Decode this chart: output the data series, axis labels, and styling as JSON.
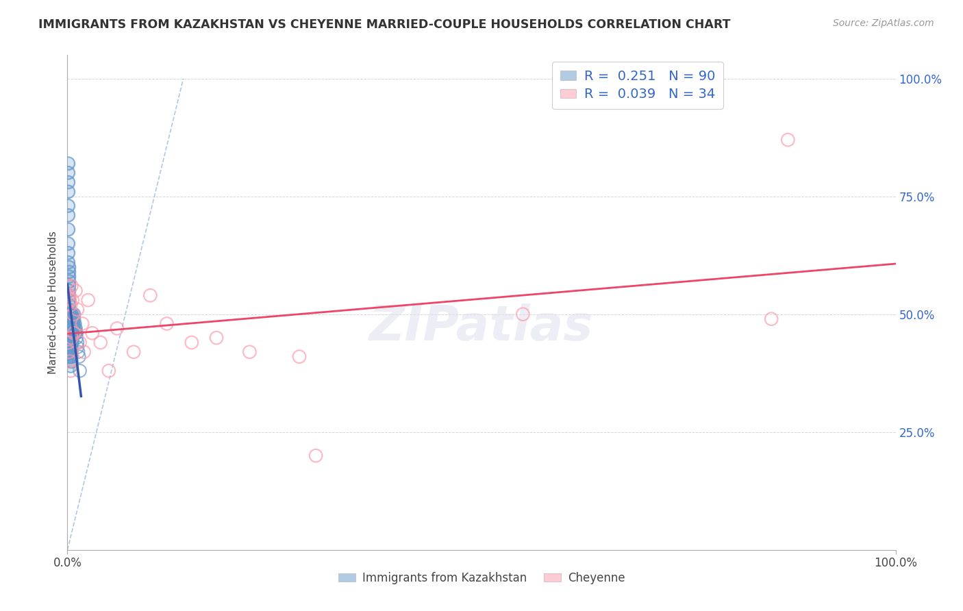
{
  "title": "IMMIGRANTS FROM KAZAKHSTAN VS CHEYENNE MARRIED-COUPLE HOUSEHOLDS CORRELATION CHART",
  "source": "Source: ZipAtlas.com",
  "ylabel": "Married-couple Households",
  "legend_label1": "Immigrants from Kazakhstan",
  "legend_label2": "Cheyenne",
  "r1": "0.251",
  "n1": "90",
  "r2": "0.039",
  "n2": "34",
  "color_blue": "#6699CC",
  "color_blue_fill": "#6699CC",
  "color_pink": "#FF99AA",
  "color_trendline_blue": "#3355AA",
  "color_trendline_pink": "#EE4466",
  "color_dashed": "#99BBDD",
  "color_grid": "#CCCCCC",
  "background": "#FFFFFF",
  "blue_points_x": [
    0.001,
    0.001,
    0.001,
    0.001,
    0.001,
    0.001,
    0.001,
    0.001,
    0.001,
    0.001,
    0.002,
    0.002,
    0.002,
    0.002,
    0.002,
    0.002,
    0.002,
    0.002,
    0.002,
    0.002,
    0.002,
    0.002,
    0.002,
    0.002,
    0.003,
    0.003,
    0.003,
    0.003,
    0.003,
    0.003,
    0.003,
    0.003,
    0.003,
    0.003,
    0.003,
    0.003,
    0.003,
    0.003,
    0.003,
    0.003,
    0.004,
    0.004,
    0.004,
    0.004,
    0.004,
    0.004,
    0.004,
    0.004,
    0.004,
    0.004,
    0.004,
    0.004,
    0.005,
    0.005,
    0.005,
    0.005,
    0.005,
    0.005,
    0.005,
    0.005,
    0.005,
    0.005,
    0.005,
    0.006,
    0.006,
    0.006,
    0.006,
    0.006,
    0.006,
    0.006,
    0.007,
    0.007,
    0.007,
    0.007,
    0.007,
    0.008,
    0.008,
    0.008,
    0.009,
    0.009,
    0.009,
    0.01,
    0.01,
    0.011,
    0.011,
    0.012,
    0.012,
    0.013,
    0.014,
    0.015
  ],
  "blue_points_y": [
    0.82,
    0.8,
    0.78,
    0.76,
    0.73,
    0.71,
    0.68,
    0.65,
    0.63,
    0.61,
    0.6,
    0.59,
    0.58,
    0.57,
    0.56,
    0.55,
    0.54,
    0.53,
    0.52,
    0.51,
    0.5,
    0.5,
    0.49,
    0.49,
    0.48,
    0.48,
    0.47,
    0.47,
    0.46,
    0.46,
    0.45,
    0.45,
    0.44,
    0.44,
    0.43,
    0.43,
    0.42,
    0.42,
    0.41,
    0.41,
    0.5,
    0.49,
    0.48,
    0.47,
    0.46,
    0.45,
    0.44,
    0.43,
    0.42,
    0.41,
    0.4,
    0.39,
    0.5,
    0.49,
    0.48,
    0.47,
    0.46,
    0.45,
    0.44,
    0.43,
    0.42,
    0.41,
    0.4,
    0.5,
    0.49,
    0.48,
    0.47,
    0.46,
    0.45,
    0.44,
    0.5,
    0.49,
    0.48,
    0.47,
    0.46,
    0.5,
    0.49,
    0.48,
    0.48,
    0.47,
    0.46,
    0.47,
    0.46,
    0.46,
    0.45,
    0.44,
    0.43,
    0.42,
    0.41,
    0.38
  ],
  "pink_points_x": [
    0.001,
    0.001,
    0.002,
    0.002,
    0.003,
    0.003,
    0.004,
    0.004,
    0.005,
    0.005,
    0.006,
    0.007,
    0.008,
    0.01,
    0.012,
    0.015,
    0.018,
    0.02,
    0.025,
    0.03,
    0.04,
    0.05,
    0.06,
    0.08,
    0.1,
    0.12,
    0.15,
    0.18,
    0.22,
    0.28,
    0.3,
    0.55,
    0.85,
    0.87
  ],
  "pink_points_y": [
    0.56,
    0.44,
    0.54,
    0.42,
    0.53,
    0.4,
    0.52,
    0.38,
    0.56,
    0.45,
    0.53,
    0.5,
    0.46,
    0.55,
    0.51,
    0.44,
    0.48,
    0.42,
    0.53,
    0.46,
    0.44,
    0.38,
    0.47,
    0.42,
    0.54,
    0.48,
    0.44,
    0.45,
    0.42,
    0.41,
    0.2,
    0.5,
    0.49,
    0.87
  ]
}
